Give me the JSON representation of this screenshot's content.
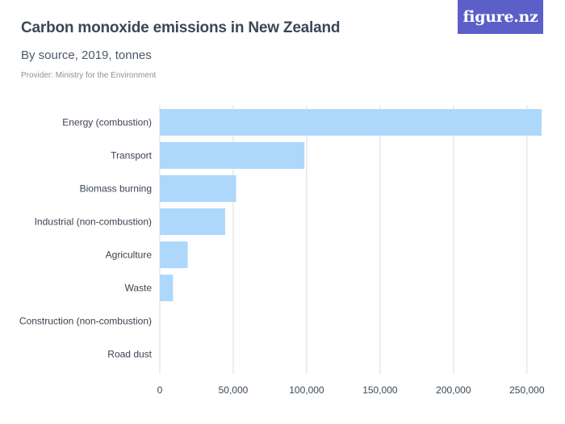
{
  "header": {
    "title": "Carbon monoxide emissions in New Zealand",
    "subtitle": "By source, 2019, tonnes",
    "provider": "Provider: Ministry for the Environment",
    "logo_text": "figure.nz"
  },
  "colors": {
    "bar": "#aed8fb",
    "grid": "#d8dde3",
    "logo_bg": "#5b5fc7"
  },
  "chart_data": {
    "type": "bar",
    "orientation": "horizontal",
    "title": "Carbon monoxide emissions in New Zealand",
    "subtitle": "By source, 2019, tonnes",
    "categories": [
      "Energy (combustion)",
      "Transport",
      "Biomass burning",
      "Industrial (non-combustion)",
      "Agriculture",
      "Waste",
      "Construction (non-combustion)",
      "Road dust"
    ],
    "values": [
      260000,
      98500,
      52000,
      44500,
      19000,
      9000,
      0,
      0
    ],
    "xlim": [
      0,
      260000
    ],
    "xticks": [
      0,
      50000,
      100000,
      150000,
      200000,
      250000
    ],
    "xtick_labels": [
      "0",
      "50,000",
      "100,000",
      "150,000",
      "200,000",
      "250,000"
    ],
    "grid": true
  }
}
